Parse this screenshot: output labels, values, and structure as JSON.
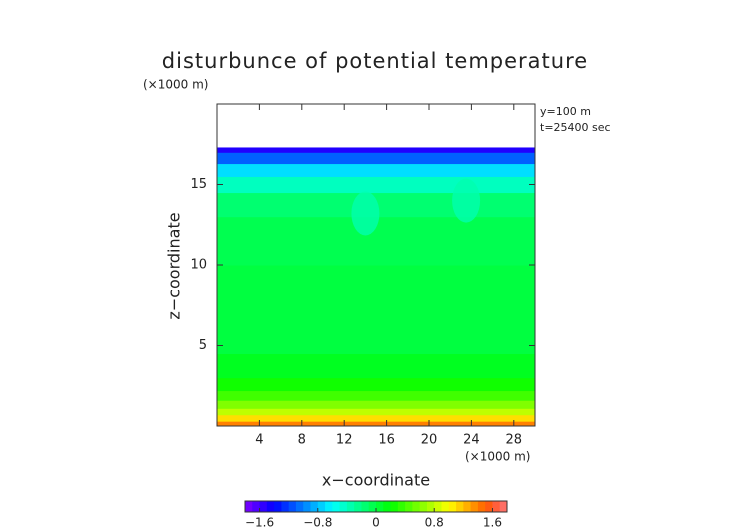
{
  "chart_data": {
    "type": "contour",
    "title": "disturbunce of potential temperature",
    "x_label": "x−coordinate",
    "y_label": "z−coordinate",
    "x_unit": "(×1000 m)",
    "y_unit": "(×1000 m)",
    "annotations": [
      "y=100 m",
      "t=25400 sec"
    ],
    "xlim": [
      0,
      30
    ],
    "ylim": [
      0,
      20
    ],
    "xticks": [
      4,
      8,
      12,
      16,
      20,
      24,
      28
    ],
    "yticks": [
      5,
      10,
      15
    ],
    "z_edges": [
      0,
      0.3,
      0.7,
      1.1,
      1.6,
      2.2,
      3,
      4.5,
      10,
      13,
      14.5,
      15.5,
      16.3,
      17,
      17.3
    ],
    "values": [
      1.4,
      1.1,
      0.8,
      0.6,
      0.4,
      0.25,
      0.1,
      0,
      -0.05,
      -0.15,
      -0.4,
      -0.7,
      -1.1,
      -1.5
    ],
    "dips": [
      {
        "x": 14,
        "z": 13.2,
        "value": -0.35
      },
      {
        "x": 23.5,
        "z": 14,
        "value": -0.35
      }
    ],
    "clim": [
      -1.8,
      1.8
    ],
    "cticks": [
      {
        "value": -1.6,
        "label": "−1.6"
      },
      {
        "value": -0.8,
        "label": "−0.8"
      },
      0,
      0.8,
      1.6
    ]
  }
}
